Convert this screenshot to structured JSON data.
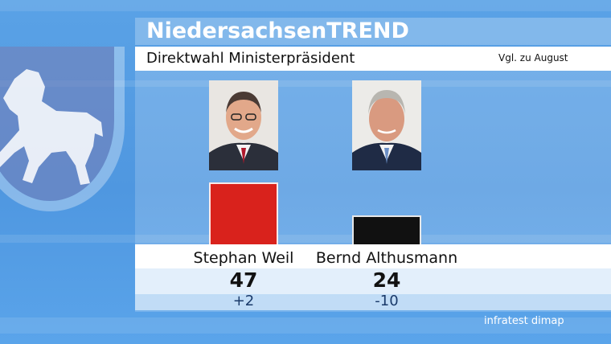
{
  "header": {
    "title": "NiedersachsenTREND",
    "subtitle": "Direktwahl Ministerpräsident",
    "note": "Vgl. zu August"
  },
  "source": "infratest dimap",
  "colors": {
    "weil": "#d9221c",
    "althusmann": "#111111"
  },
  "chart_data": {
    "type": "bar",
    "title": "Direktwahl Ministerpräsident",
    "categories": [
      "Stephan Weil",
      "Bernd Althusmann"
    ],
    "values": [
      47,
      24
    ],
    "changes": [
      "+2",
      "-10"
    ],
    "ylim": [
      0,
      50
    ],
    "candidates": [
      {
        "name": "Stephan Weil",
        "value": "47",
        "change": "+2",
        "color": "#d9221c"
      },
      {
        "name": "Bernd Althusmann",
        "value": "24",
        "change": "-10",
        "color": "#111111"
      }
    ]
  }
}
